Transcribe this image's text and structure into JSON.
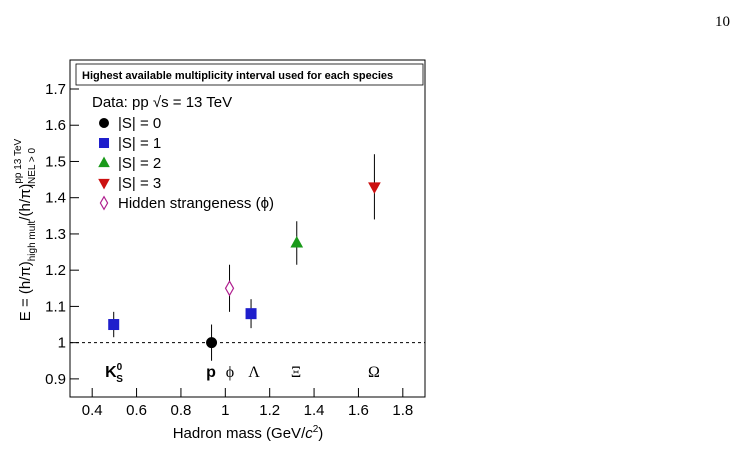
{
  "page_number": "10",
  "chart_data": {
    "type": "scatter",
    "header": "Highest available multiplicity interval used for each species",
    "data_label": "Data: pp √s = 13 TeV",
    "x_label": {
      "main": "Hadron mass (GeV/",
      "italic": "c",
      "sup": "2",
      "end": ")"
    },
    "y_label": {
      "main": "E = (h/π)",
      "sub1": "high mult",
      "mid": "/(h/π)",
      "sup2": "pp 13 TeV",
      "sub2": "INEL > 0"
    },
    "xlim": [
      0.3,
      1.9
    ],
    "ylim": [
      0.85,
      1.78
    ],
    "xticks": [
      0.4,
      0.6,
      0.8,
      1,
      1.2,
      1.4,
      1.6,
      1.8
    ],
    "yticks": [
      0.9,
      1,
      1.1,
      1.2,
      1.3,
      1.4,
      1.5,
      1.6,
      1.7
    ],
    "reference_line": 1,
    "error_color": "#000000",
    "series": [
      {
        "name": "|S| = 0",
        "color": "#000000",
        "marker": "circle",
        "x": [
          0.938
        ],
        "values": [
          1.0
        ],
        "errors": [
          0.05
        ]
      },
      {
        "name": "|S| = 1",
        "color": "#1f1fcc",
        "marker": "square",
        "x": [
          0.497,
          1.116
        ],
        "values": [
          1.05,
          1.08
        ],
        "errors": [
          0.035,
          0.04
        ]
      },
      {
        "name": "|S| = 2",
        "color": "#1a9a1a",
        "marker": "triangle-up",
        "x": [
          1.322
        ],
        "values": [
          1.275
        ],
        "errors": [
          0.06
        ]
      },
      {
        "name": "|S| = 3",
        "color": "#cc1111",
        "marker": "triangle-down",
        "x": [
          1.672
        ],
        "values": [
          1.43
        ],
        "errors": [
          0.09
        ]
      },
      {
        "name": "Hidden strangeness (ϕ)",
        "color": "#b0208f",
        "marker": "open-diamond",
        "x": [
          1.019
        ],
        "values": [
          1.15
        ],
        "errors": [
          0.065
        ]
      }
    ],
    "particle_labels": [
      {
        "text": "K",
        "sup": "0",
        "sub": "S"
      },
      {
        "text": "p"
      },
      {
        "text": "ϕ"
      },
      {
        "text": "Λ"
      },
      {
        "text": "Ξ"
      },
      {
        "text": "Ω"
      }
    ]
  }
}
